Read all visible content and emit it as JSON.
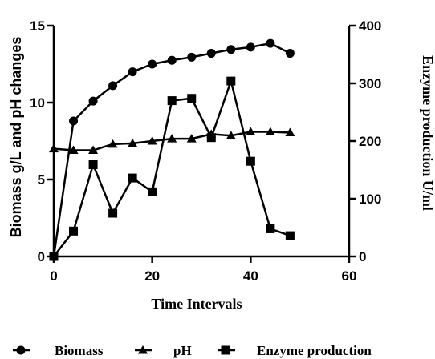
{
  "chart_data": {
    "type": "line",
    "xlabel": "Time Intervals",
    "ylabel_left": "Biomass g/L  and pH changes",
    "ylabel_right": "Enzyme production U/ml",
    "xlim": [
      0,
      60
    ],
    "ylim_left": [
      0,
      15
    ],
    "ylim_right": [
      0,
      400
    ],
    "x_ticks": [
      0,
      20,
      40,
      60
    ],
    "y_ticks_left": [
      0,
      5,
      10,
      15
    ],
    "y_ticks_right": [
      0,
      100,
      200,
      300,
      400
    ],
    "legend_position": "bottom",
    "series": [
      {
        "name": "Biomass",
        "axis": "left",
        "marker": "circle",
        "x": [
          0,
          4,
          8,
          12,
          16,
          20,
          24,
          28,
          32,
          36,
          40,
          44,
          48
        ],
        "y": [
          0,
          8.8,
          10.1,
          11.1,
          12.0,
          12.5,
          12.75,
          12.95,
          13.2,
          13.45,
          13.6,
          13.85,
          13.2
        ]
      },
      {
        "name": "pH",
        "axis": "left",
        "marker": "triangle",
        "x": [
          0,
          4,
          8,
          12,
          16,
          20,
          24,
          28,
          32,
          36,
          40,
          44,
          48
        ],
        "y": [
          7.0,
          6.9,
          6.9,
          7.3,
          7.35,
          7.5,
          7.65,
          7.65,
          7.95,
          7.85,
          8.1,
          8.1,
          8.05
        ]
      },
      {
        "name": "Enzyme production",
        "axis": "right",
        "marker": "square",
        "x": [
          0,
          4,
          8,
          12,
          16,
          20,
          24,
          28,
          32,
          36,
          40,
          44,
          48
        ],
        "y": [
          0,
          44,
          159,
          75,
          136,
          112,
          270,
          274,
          206,
          304,
          165,
          48,
          36
        ]
      }
    ]
  }
}
